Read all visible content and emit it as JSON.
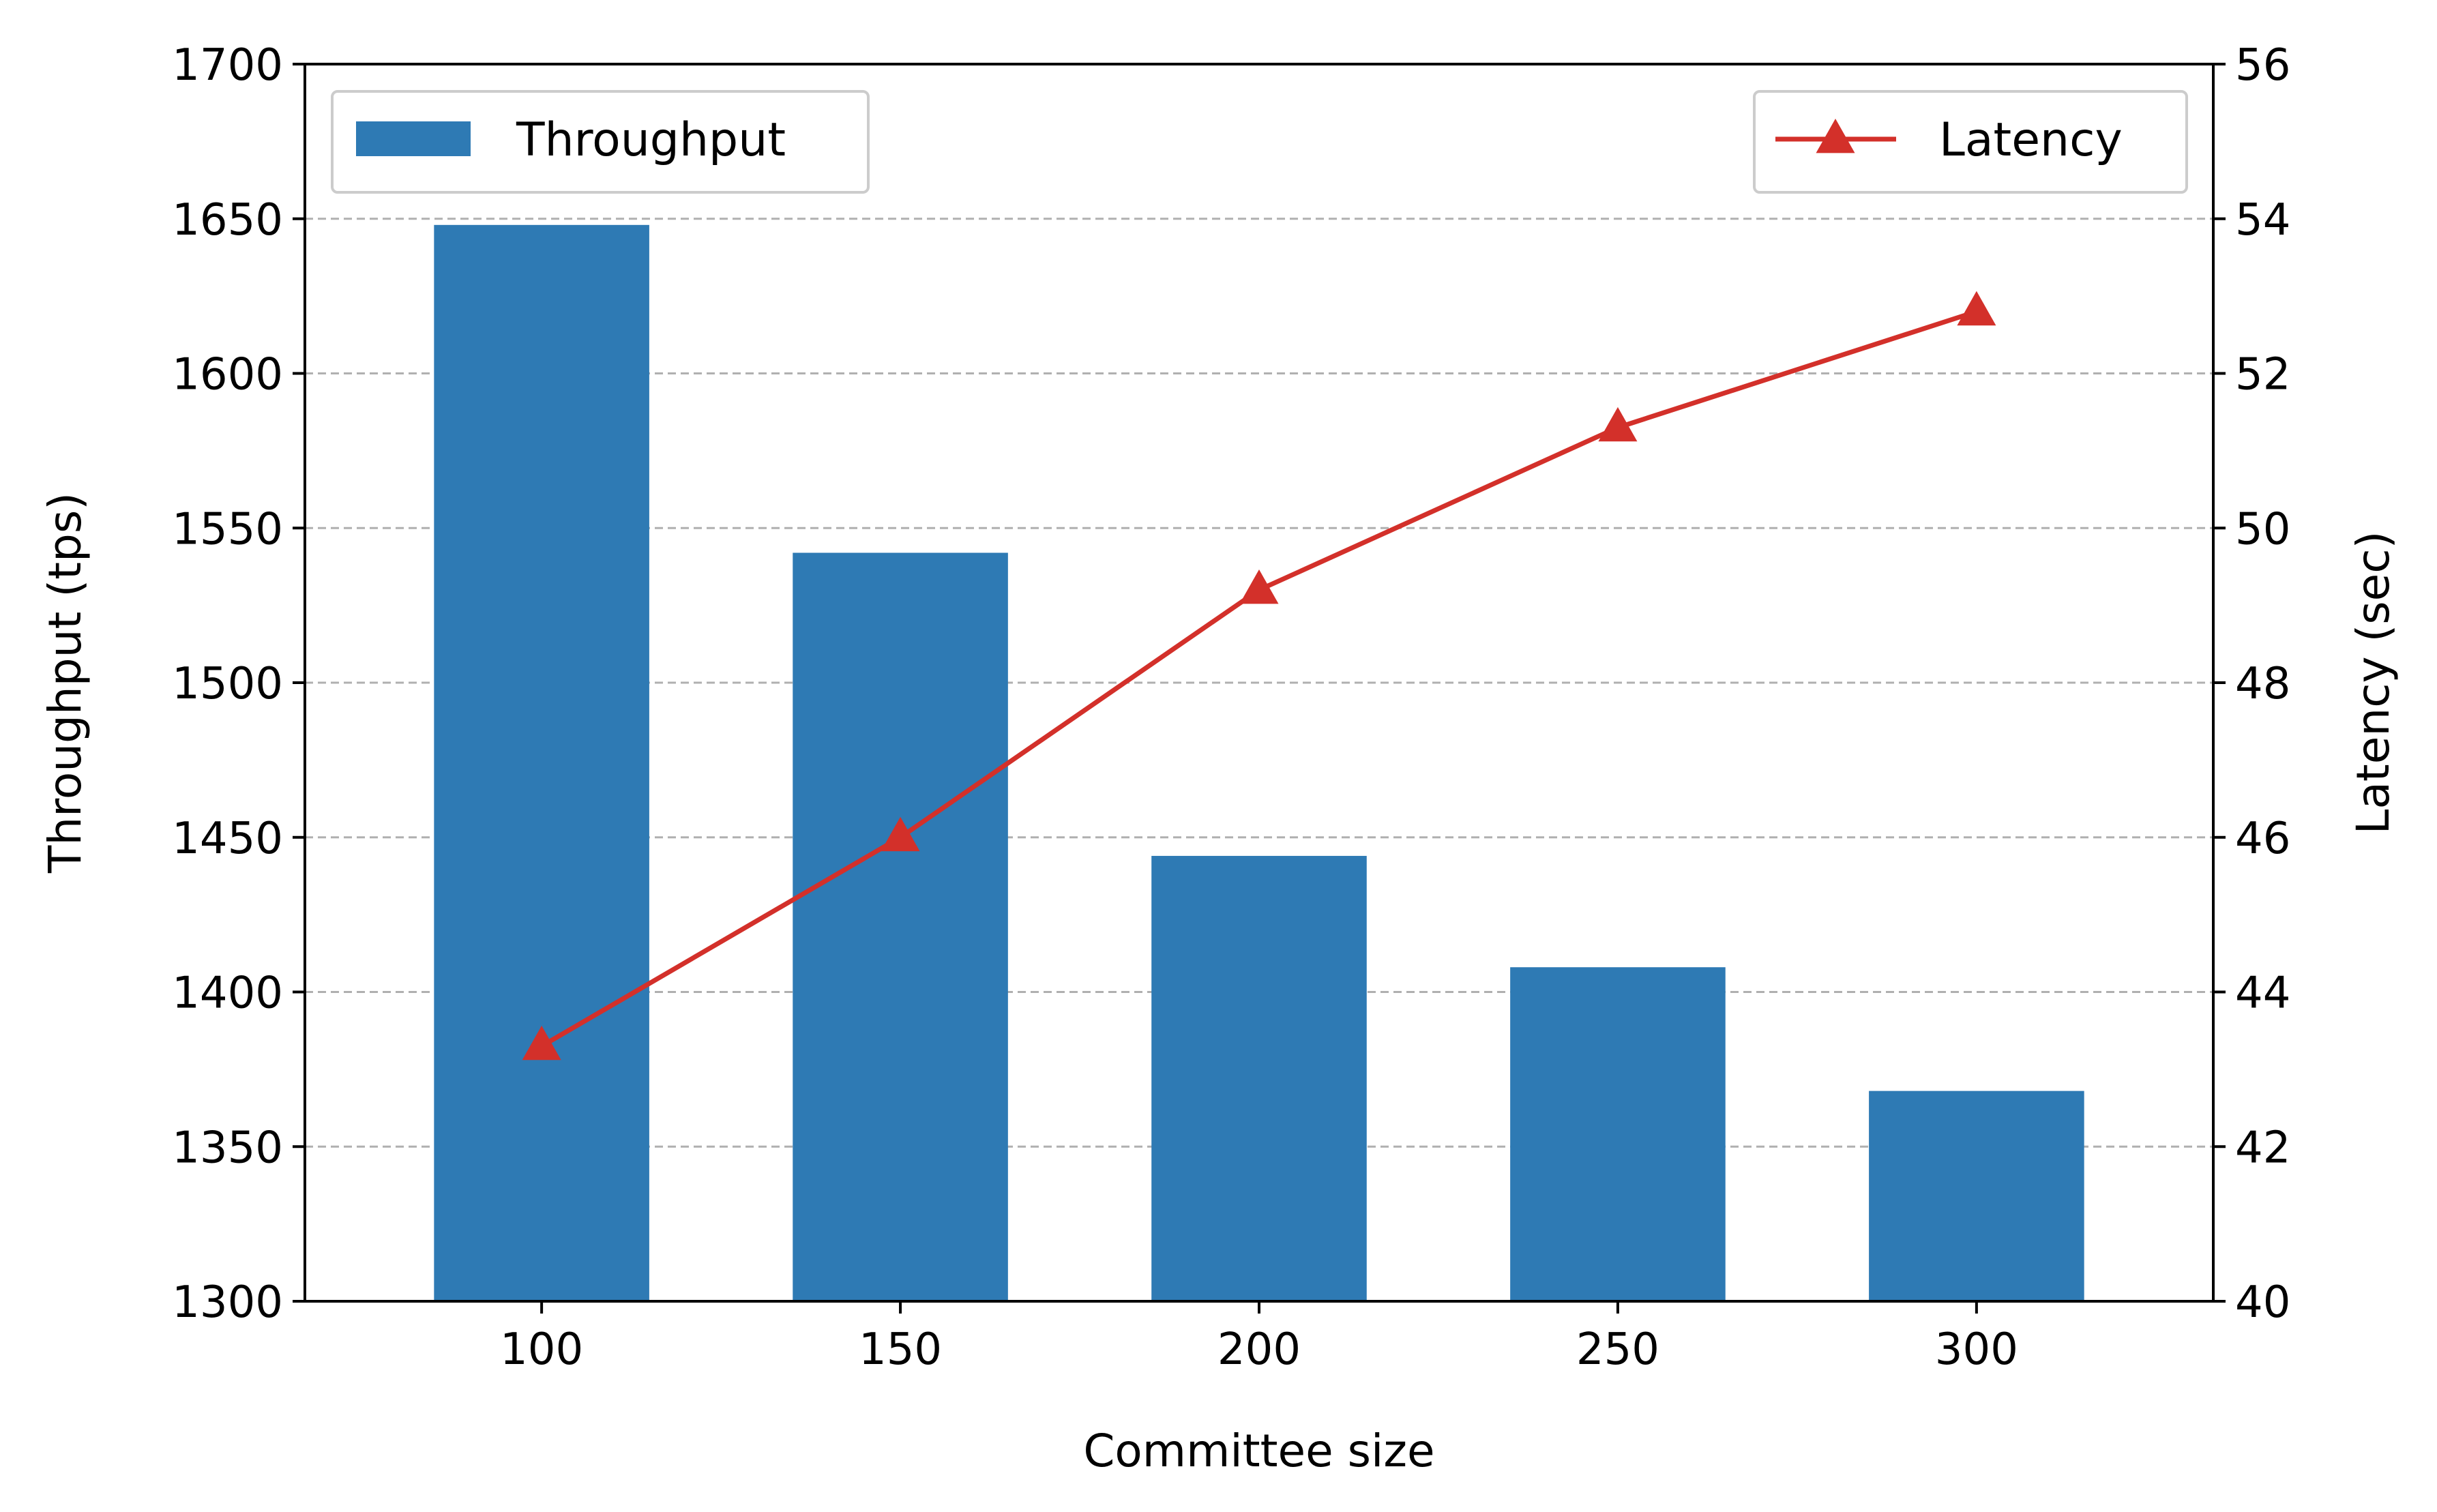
{
  "chart_data": {
    "type": "bar",
    "title": "",
    "xlabel": "Committee size",
    "categories": [
      "100",
      "150",
      "200",
      "250",
      "300"
    ],
    "ylabel_left": "Throughput (tps)",
    "ylabel_right": "Latency (sec)",
    "ylim_left": [
      1300,
      1700
    ],
    "ylim_right": [
      40,
      56
    ],
    "yticks_left": [
      "1300",
      "1350",
      "1400",
      "1450",
      "1500",
      "1550",
      "1600",
      "1650",
      "1700"
    ],
    "yticks_right": [
      "40",
      "42",
      "44",
      "46",
      "48",
      "50",
      "52",
      "54",
      "56"
    ],
    "grid": "horizontal dashed",
    "series": [
      {
        "name": "Throughput",
        "type": "bar",
        "axis": "left",
        "color": "#2e7ab4",
        "values": [
          1648,
          1542,
          1444,
          1408,
          1368
        ]
      },
      {
        "name": "Latency",
        "type": "line",
        "axis": "right",
        "marker": "triangle",
        "color": "#d3302a",
        "values": [
          43.3,
          46.0,
          49.2,
          51.3,
          52.8
        ]
      }
    ],
    "legend": {
      "throughput_position": "top-left",
      "latency_position": "top-right"
    }
  }
}
